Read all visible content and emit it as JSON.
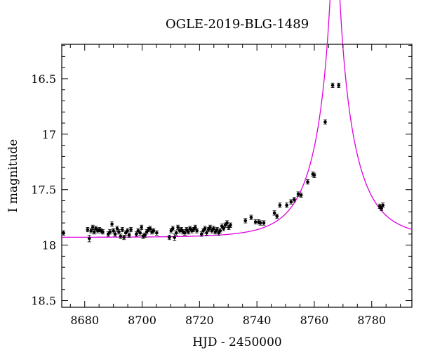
{
  "chart_data": {
    "type": "scatter",
    "title": "OGLE-2019-BLG-1489",
    "xlabel": "HJD - 2450000",
    "ylabel": "I magnitude",
    "xlim": [
      8672,
      8794
    ],
    "ylim": [
      18.56,
      16.19
    ],
    "y_inverted": true,
    "x_major_ticks": [
      8680,
      8700,
      8720,
      8740,
      8760,
      8780
    ],
    "x_minor_step": 5,
    "y_major_ticks": [
      16.5,
      17,
      17.5,
      18,
      18.5
    ],
    "y_minor_step": 0.1,
    "grid": false,
    "colors": {
      "model": "#e000e0",
      "points": "#000000"
    },
    "model": {
      "t0": 8767.2,
      "u0": 0.067,
      "tE": 14.0,
      "i_source": 17.93
    },
    "series": [
      {
        "type": "points_with_errorbars",
        "points": [
          [
            8672.6,
            17.89,
            0.02
          ],
          [
            8681.0,
            17.86,
            0.02
          ],
          [
            8681.6,
            17.94,
            0.03
          ],
          [
            8682.2,
            17.87,
            0.02
          ],
          [
            8682.8,
            17.84,
            0.02
          ],
          [
            8683.3,
            17.88,
            0.02
          ],
          [
            8683.9,
            17.85,
            0.02
          ],
          [
            8684.5,
            17.87,
            0.02
          ],
          [
            8685.1,
            17.86,
            0.02
          ],
          [
            8685.7,
            17.87,
            0.02
          ],
          [
            8686.3,
            17.88,
            0.02
          ],
          [
            8688.2,
            17.9,
            0.02
          ],
          [
            8688.8,
            17.88,
            0.02
          ],
          [
            8689.5,
            17.81,
            0.02
          ],
          [
            8690.0,
            17.87,
            0.02
          ],
          [
            8690.6,
            17.9,
            0.02
          ],
          [
            8691.3,
            17.85,
            0.02
          ],
          [
            8691.9,
            17.88,
            0.02
          ],
          [
            8692.5,
            17.92,
            0.02
          ],
          [
            8693.1,
            17.86,
            0.02
          ],
          [
            8693.7,
            17.93,
            0.02
          ],
          [
            8694.3,
            17.89,
            0.02
          ],
          [
            8694.9,
            17.87,
            0.02
          ],
          [
            8695.5,
            17.91,
            0.02
          ],
          [
            8696.1,
            17.86,
            0.02
          ],
          [
            8698.0,
            17.9,
            0.02
          ],
          [
            8698.6,
            17.87,
            0.02
          ],
          [
            8699.3,
            17.89,
            0.02
          ],
          [
            8699.8,
            17.84,
            0.02
          ],
          [
            8700.4,
            17.92,
            0.02
          ],
          [
            8701.0,
            17.91,
            0.02
          ],
          [
            8701.6,
            17.88,
            0.02
          ],
          [
            8702.2,
            17.86,
            0.02
          ],
          [
            8702.8,
            17.85,
            0.02
          ],
          [
            8703.4,
            17.88,
            0.02
          ],
          [
            8704.0,
            17.87,
            0.02
          ],
          [
            8705.1,
            17.89,
            0.02
          ],
          [
            8709.5,
            17.93,
            0.02
          ],
          [
            8710.1,
            17.87,
            0.02
          ],
          [
            8710.7,
            17.85,
            0.02
          ],
          [
            8711.3,
            17.93,
            0.03
          ],
          [
            8711.9,
            17.89,
            0.02
          ],
          [
            8712.5,
            17.84,
            0.02
          ],
          [
            8713.1,
            17.87,
            0.02
          ],
          [
            8713.7,
            17.86,
            0.02
          ],
          [
            8714.3,
            17.88,
            0.02
          ],
          [
            8714.9,
            17.89,
            0.02
          ],
          [
            8715.5,
            17.86,
            0.02
          ],
          [
            8716.1,
            17.88,
            0.02
          ],
          [
            8716.7,
            17.85,
            0.02
          ],
          [
            8717.3,
            17.87,
            0.02
          ],
          [
            8717.9,
            17.86,
            0.02
          ],
          [
            8718.5,
            17.84,
            0.02
          ],
          [
            8719.1,
            17.87,
            0.02
          ],
          [
            8720.7,
            17.9,
            0.02
          ],
          [
            8721.3,
            17.87,
            0.02
          ],
          [
            8721.9,
            17.85,
            0.02
          ],
          [
            8722.5,
            17.89,
            0.02
          ],
          [
            8723.1,
            17.86,
            0.02
          ],
          [
            8723.7,
            17.84,
            0.02
          ],
          [
            8724.3,
            17.87,
            0.02
          ],
          [
            8724.9,
            17.85,
            0.02
          ],
          [
            8725.5,
            17.88,
            0.02
          ],
          [
            8726.1,
            17.86,
            0.02
          ],
          [
            8726.7,
            17.89,
            0.02
          ],
          [
            8727.2,
            17.87,
            0.02
          ],
          [
            8727.8,
            17.83,
            0.02
          ],
          [
            8728.4,
            17.85,
            0.02
          ],
          [
            8729.0,
            17.82,
            0.02
          ],
          [
            8729.6,
            17.8,
            0.02
          ],
          [
            8730.2,
            17.84,
            0.02
          ],
          [
            8730.8,
            17.82,
            0.02
          ],
          [
            8736.0,
            17.78,
            0.02
          ],
          [
            8738.0,
            17.75,
            0.02
          ],
          [
            8739.5,
            17.79,
            0.02
          ],
          [
            8740.6,
            17.79,
            0.02
          ],
          [
            8741.2,
            17.8,
            0.02
          ],
          [
            8742.4,
            17.8,
            0.02
          ],
          [
            8746.1,
            17.71,
            0.02
          ],
          [
            8747.0,
            17.74,
            0.02
          ],
          [
            8748.0,
            17.64,
            0.02
          ],
          [
            8750.4,
            17.64,
            0.02
          ],
          [
            8751.9,
            17.61,
            0.02
          ],
          [
            8753.0,
            17.59,
            0.02
          ],
          [
            8754.4,
            17.54,
            0.02
          ],
          [
            8755.4,
            17.55,
            0.02
          ],
          [
            8757.7,
            17.43,
            0.02
          ],
          [
            8759.5,
            17.36,
            0.02
          ],
          [
            8760.0,
            17.37,
            0.02
          ],
          [
            8763.8,
            16.89,
            0.02
          ],
          [
            8766.4,
            16.56,
            0.02
          ],
          [
            8768.5,
            16.56,
            0.02
          ],
          [
            8782.8,
            17.65,
            0.02
          ],
          [
            8783.4,
            17.67,
            0.02
          ],
          [
            8783.9,
            17.64,
            0.02
          ]
        ]
      }
    ]
  }
}
